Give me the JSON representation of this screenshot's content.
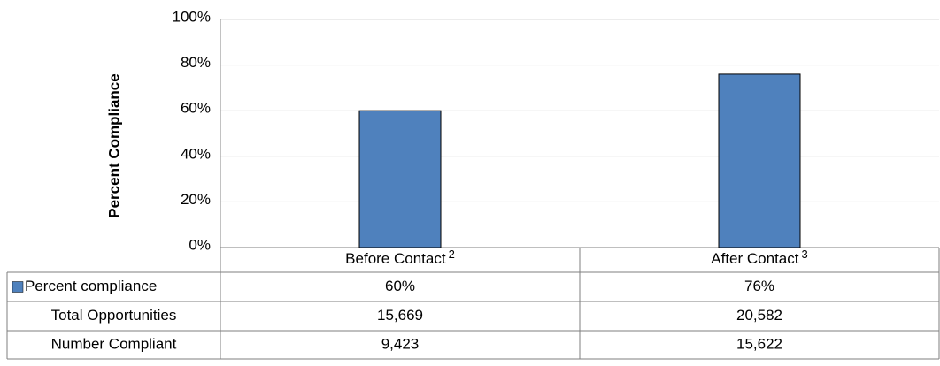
{
  "chart_data": {
    "type": "bar",
    "y_axis_label": "Percent Compliance",
    "categories": [
      "Before Contact",
      "After Contact"
    ],
    "category_notes": [
      "2",
      "3"
    ],
    "series": [
      {
        "name": "Percent compliance",
        "color": "#4f81bd",
        "values": [
          60,
          76
        ],
        "value_labels": [
          "60%",
          "76%"
        ]
      }
    ],
    "ylim": [
      0,
      100
    ],
    "yticks": [
      {
        "value": 0,
        "label": "0%"
      },
      {
        "value": 20,
        "label": "20%"
      },
      {
        "value": 40,
        "label": "40%"
      },
      {
        "value": 60,
        "label": "60%"
      },
      {
        "value": 80,
        "label": "80%"
      },
      {
        "value": 100,
        "label": "100%"
      }
    ],
    "grid": true,
    "table_rows": [
      {
        "name": "Total Opportunities",
        "cells": [
          "15,669",
          "20,582"
        ]
      },
      {
        "name": "Number Compliant",
        "cells": [
          "9,423",
          "15,622"
        ]
      }
    ]
  }
}
